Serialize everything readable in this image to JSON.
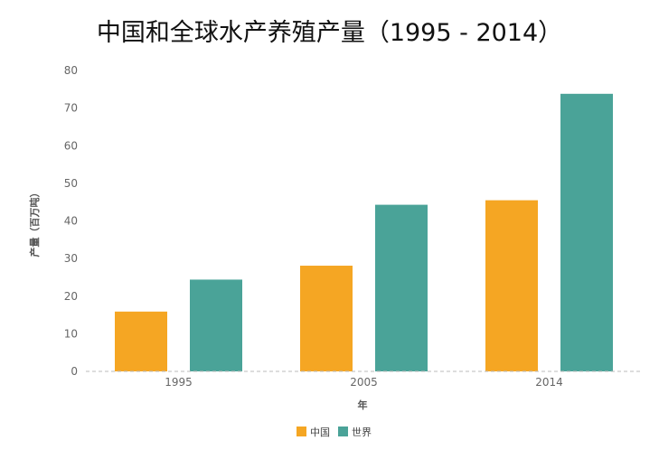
{
  "chart_data": {
    "type": "bar",
    "title": "中国和全球水产养殖产量（1995 - 2014）",
    "xlabel": "年",
    "ylabel": "产量（百万吨）",
    "categories": [
      "1995",
      "2005",
      "2014"
    ],
    "series": [
      {
        "name": "中国",
        "color": "#f5a623",
        "values": [
          15.9,
          28.1,
          45.5
        ]
      },
      {
        "name": "世界",
        "color": "#4aa398",
        "values": [
          24.4,
          44.3,
          73.8
        ]
      }
    ],
    "ylim": [
      0,
      80
    ],
    "yticks": [
      0,
      10,
      20,
      30,
      40,
      50,
      60,
      70,
      80
    ],
    "grid": false,
    "legend": "bottom-center"
  }
}
